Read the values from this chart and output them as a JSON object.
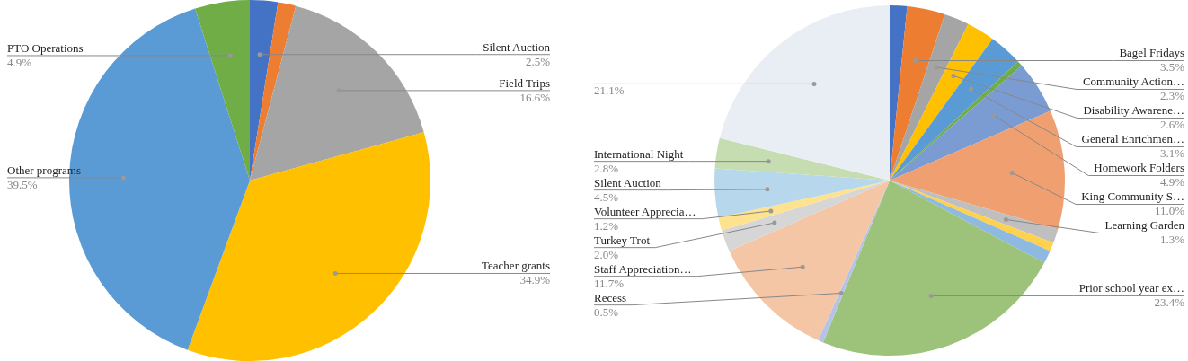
{
  "chart_data": [
    {
      "type": "pie",
      "categories": [
        "Silent Auction",
        null,
        "Field Trips",
        "Teacher grants",
        "Other programs",
        "PTO Operations"
      ],
      "values": [
        2.5,
        1.6,
        16.6,
        34.9,
        39.5,
        4.9
      ],
      "value_labels": [
        "2.5%",
        null,
        "16.6%",
        "34.9%",
        "39.5%",
        "4.9%"
      ],
      "colors": [
        "#4472c4",
        "#ed7d31",
        "#a5a5a5",
        "#ffc000",
        "#5b9bd5",
        "#70ad47"
      ]
    },
    {
      "type": "pie",
      "categories": [
        null,
        "Bagel Fridays",
        "Community Action…",
        "Disability Awarene…",
        "General Enrichmen…",
        null,
        "Homework Folders",
        "King Community S…",
        "Learning Garden",
        null,
        null,
        "Prior school year ex…",
        "Recess",
        "Staff Appreciation…",
        "Turkey Trot",
        "Volunteer Apprecia…",
        "Silent Auction",
        "International Night",
        null
      ],
      "values": [
        1.6,
        3.5,
        2.3,
        2.6,
        3.1,
        0.5,
        4.9,
        11.0,
        1.3,
        0.8,
        1.2,
        23.4,
        0.5,
        11.7,
        2.0,
        1.2,
        4.5,
        2.8,
        21.1
      ],
      "value_labels": [
        null,
        "3.5%",
        "2.3%",
        "2.6%",
        "3.1%",
        null,
        "4.9%",
        "11.0%",
        "1.3%",
        null,
        null,
        "23.4%",
        "0.5%",
        "11.7%",
        "2.0%",
        "1.2%",
        "4.5%",
        "2.8%",
        "21.1%"
      ],
      "colors": [
        "#4472c4",
        "#ed7d31",
        "#a5a5a5",
        "#ffc000",
        "#5b9bd5",
        "#70ad47",
        "#7b9bd3",
        "#f0a070",
        "#bfbfbf",
        "#ffd24d",
        "#8eb9e0",
        "#9dc37b",
        "#b4c3e6",
        "#f4c6a6",
        "#d6d6d6",
        "#ffe28e",
        "#b6d7ec",
        "#c6ddb2",
        "#e9eef4"
      ]
    }
  ]
}
